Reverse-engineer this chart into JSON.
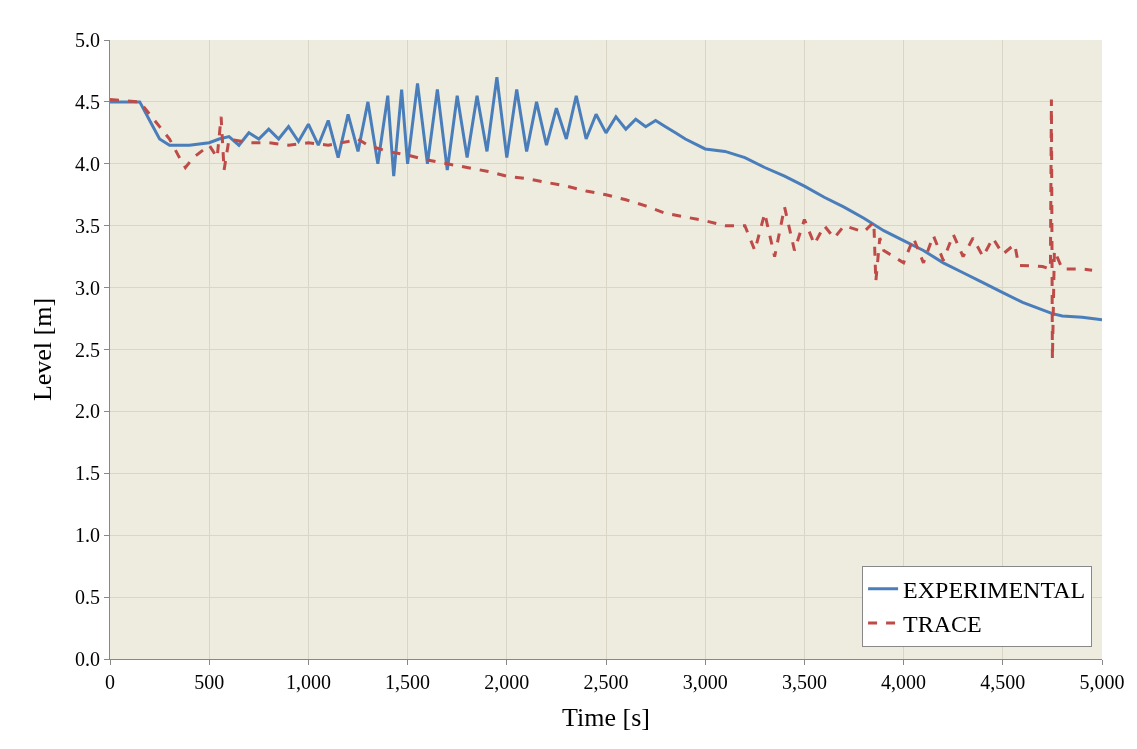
{
  "chart_data": {
    "type": "line",
    "xlabel": "Time [s]",
    "ylabel": "Level [m]",
    "xlim": [
      0,
      5000
    ],
    "xticks": [
      0,
      {
        "value": 500,
        "label": "500"
      },
      {
        "value": 1000,
        "label": "1,000"
      },
      {
        "value": 1500,
        "label": "1,500"
      },
      {
        "value": 2000,
        "label": "2,000"
      },
      {
        "value": 2500,
        "label": "2,500"
      },
      {
        "value": 3000,
        "label": "3,000"
      },
      {
        "value": 3500,
        "label": "3,500"
      },
      {
        "value": 4000,
        "label": "4,000"
      },
      {
        "value": 4500,
        "label": "4,500"
      },
      {
        "value": 5000,
        "label": "5,000"
      }
    ],
    "ylim": [
      0,
      5
    ],
    "yticks": [
      {
        "value": 0,
        "label": "0.0"
      },
      0.5,
      {
        "value": 1,
        "label": "1.0"
      },
      1.5,
      {
        "value": 2,
        "label": "2.0"
      },
      2.5,
      {
        "value": 3,
        "label": "3.0"
      },
      3.5,
      {
        "value": 4,
        "label": "4.0"
      },
      4.5,
      {
        "value": 5,
        "label": "5.0"
      }
    ],
    "grid": true,
    "legend": "bottom right",
    "marker": "none",
    "series": [
      {
        "name": "EXPERIMENTAL",
        "color": "#4a7ebb",
        "line_style": "solid",
        "x": [
          0,
          150,
          200,
          250,
          300,
          400,
          500,
          550,
          600,
          650,
          700,
          750,
          800,
          850,
          900,
          950,
          1000,
          1050,
          1100,
          1150,
          1200,
          1250,
          1300,
          1350,
          1400,
          1430,
          1470,
          1500,
          1550,
          1600,
          1650,
          1700,
          1750,
          1800,
          1850,
          1900,
          1950,
          2000,
          2050,
          2100,
          2150,
          2200,
          2250,
          2300,
          2350,
          2400,
          2450,
          2500,
          2550,
          2600,
          2650,
          2700,
          2750,
          2800,
          2850,
          2900,
          3000,
          3100,
          3200,
          3300,
          3400,
          3500,
          3600,
          3700,
          3800,
          3900,
          4000,
          4100,
          4200,
          4300,
          4400,
          4500,
          4600,
          4700,
          4750,
          4800,
          4900,
          5000
        ],
        "values": [
          4.5,
          4.5,
          4.35,
          4.2,
          4.15,
          4.15,
          4.17,
          4.2,
          4.22,
          4.15,
          4.25,
          4.2,
          4.28,
          4.2,
          4.3,
          4.18,
          4.32,
          4.15,
          4.35,
          4.05,
          4.4,
          4.1,
          4.5,
          4.0,
          4.55,
          3.9,
          4.6,
          4.0,
          4.65,
          4.0,
          4.6,
          3.95,
          4.55,
          4.05,
          4.55,
          4.1,
          4.7,
          4.05,
          4.6,
          4.1,
          4.5,
          4.15,
          4.45,
          4.2,
          4.55,
          4.2,
          4.4,
          4.25,
          4.38,
          4.28,
          4.36,
          4.3,
          4.35,
          4.3,
          4.25,
          4.2,
          4.12,
          4.1,
          4.05,
          3.97,
          3.9,
          3.82,
          3.73,
          3.65,
          3.56,
          3.46,
          3.38,
          3.3,
          3.2,
          3.12,
          3.04,
          2.96,
          2.88,
          2.82,
          2.79,
          2.77,
          2.76,
          2.74
        ]
      },
      {
        "name": "TRACE",
        "color": "#be4b48",
        "line_style": "dashed",
        "x": [
          0,
          150,
          200,
          250,
          300,
          350,
          380,
          420,
          500,
          540,
          560,
          575,
          600,
          700,
          800,
          900,
          1000,
          1100,
          1200,
          1250,
          1300,
          1400,
          1500,
          1600,
          1700,
          1800,
          1900,
          2000,
          2100,
          2200,
          2300,
          2400,
          2500,
          2600,
          2700,
          2800,
          2900,
          3000,
          3100,
          3200,
          3250,
          3300,
          3350,
          3400,
          3450,
          3500,
          3550,
          3600,
          3650,
          3700,
          3800,
          3850,
          3860,
          3880,
          3900,
          3950,
          4000,
          4050,
          4100,
          4150,
          4200,
          4250,
          4300,
          4350,
          4400,
          4450,
          4500,
          4560,
          4580,
          4700,
          4740,
          4745,
          4750,
          4760,
          4800,
          4900,
          4950
        ],
        "values": [
          4.52,
          4.5,
          4.4,
          4.3,
          4.2,
          4.05,
          3.97,
          4.05,
          4.15,
          4.05,
          4.38,
          3.95,
          4.2,
          4.17,
          4.17,
          4.15,
          4.17,
          4.15,
          4.18,
          4.2,
          4.15,
          4.1,
          4.07,
          4.03,
          4.0,
          3.97,
          3.94,
          3.9,
          3.88,
          3.85,
          3.82,
          3.78,
          3.75,
          3.71,
          3.66,
          3.6,
          3.57,
          3.54,
          3.5,
          3.5,
          3.3,
          3.6,
          3.25,
          3.65,
          3.3,
          3.55,
          3.35,
          3.5,
          3.4,
          3.5,
          3.45,
          3.53,
          3.05,
          3.4,
          3.3,
          3.25,
          3.2,
          3.4,
          3.2,
          3.42,
          3.22,
          3.43,
          3.25,
          3.4,
          3.25,
          3.4,
          3.27,
          3.35,
          3.18,
          3.17,
          3.15,
          4.52,
          2.42,
          3.3,
          3.15,
          3.15,
          3.14
        ]
      }
    ]
  }
}
